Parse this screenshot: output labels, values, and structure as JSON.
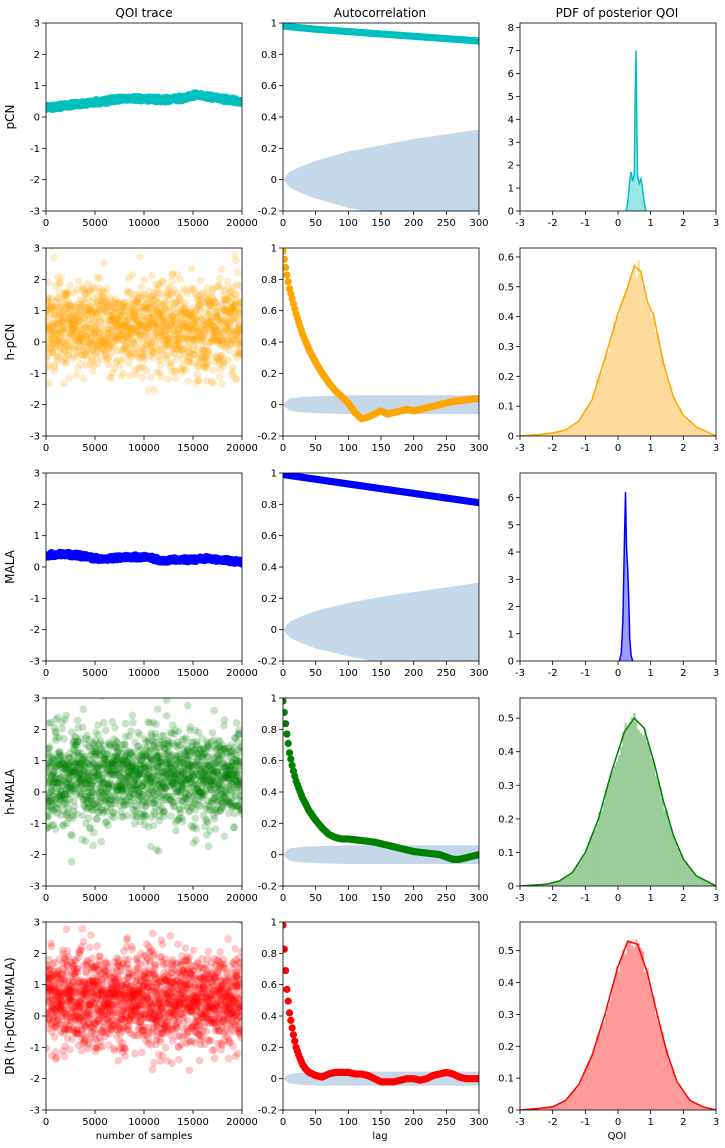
{
  "chart_data": {
    "type": "grid",
    "column_titles": [
      "QOI trace",
      "Autocorrelation",
      "PDF of posterior QOI"
    ],
    "x_labels": [
      "number of samples",
      "lag",
      "QOI"
    ],
    "trace_axis": {
      "xlim": [
        0,
        20000
      ],
      "ylim": [
        -3,
        3
      ],
      "xticks": [
        0,
        5000,
        10000,
        15000,
        20000
      ],
      "yticks": [
        -3,
        -2,
        -1,
        0,
        1,
        2,
        3
      ]
    },
    "acf_axis": {
      "xlim": [
        0,
        300
      ],
      "ylim": [
        -0.2,
        1.0
      ],
      "xticks": [
        0,
        50,
        100,
        150,
        200,
        250,
        300
      ],
      "yticks": [
        -0.2,
        0.0,
        0.2,
        0.4,
        0.6,
        0.8,
        1.0
      ]
    },
    "pdf_axis": {
      "xlim": [
        -3,
        3
      ],
      "xticks": [
        -3,
        -2,
        -1,
        0,
        1,
        2,
        3
      ]
    },
    "band_color": "#c5d8ea",
    "rows": [
      {
        "name": "pCN",
        "color": "#00bfbf",
        "trace": {
          "type": "scatter",
          "x": [
            0,
            2000,
            4000,
            6000,
            8000,
            10000,
            12000,
            14000,
            15500,
            17000,
            18500,
            20000
          ],
          "y": [
            0.3,
            0.35,
            0.45,
            0.5,
            0.6,
            0.58,
            0.55,
            0.6,
            0.72,
            0.62,
            0.55,
            0.5
          ],
          "spread": 0.06
        },
        "acf": {
          "type": "line",
          "x": [
            0,
            50,
            100,
            150,
            200,
            250,
            300
          ],
          "y": [
            0.98,
            0.96,
            0.945,
            0.93,
            0.915,
            0.9,
            0.885
          ]
        },
        "band": {
          "x": [
            0,
            10,
            25,
            50,
            100,
            150,
            200,
            250,
            300
          ],
          "half_width": [
            0,
            0.05,
            0.08,
            0.12,
            0.18,
            0.22,
            0.26,
            0.29,
            0.32
          ]
        },
        "pdf": {
          "type": "area",
          "ylim": [
            0,
            8.2
          ],
          "yticks": [
            0,
            1,
            2,
            3,
            4,
            5,
            6,
            7,
            8
          ],
          "x": [
            0.25,
            0.3,
            0.35,
            0.4,
            0.45,
            0.5,
            0.52,
            0.55,
            0.58,
            0.6,
            0.65,
            0.7,
            0.75,
            0.8,
            0.85
          ],
          "y": [
            0,
            0.4,
            1.2,
            1.7,
            1.3,
            1.6,
            4.5,
            7.0,
            3.5,
            1.5,
            1.2,
            1.4,
            1.0,
            0.4,
            0
          ]
        }
      },
      {
        "name": "h-pCN",
        "color": "#ffa500",
        "trace": {
          "type": "scatter",
          "mean": 0.5,
          "sd": 0.72,
          "n": 1400,
          "seed": 11
        },
        "acf": {
          "type": "line",
          "x": [
            0,
            5,
            10,
            20,
            30,
            40,
            50,
            60,
            70,
            80,
            90,
            100,
            110,
            120,
            130,
            140,
            150,
            160,
            170,
            180,
            190,
            200,
            220,
            240,
            260,
            280,
            300
          ],
          "y": [
            0.98,
            0.85,
            0.74,
            0.58,
            0.45,
            0.35,
            0.27,
            0.2,
            0.14,
            0.09,
            0.05,
            0.01,
            -0.05,
            -0.09,
            -0.08,
            -0.06,
            -0.04,
            -0.06,
            -0.05,
            -0.04,
            -0.03,
            -0.04,
            -0.02,
            0.0,
            0.02,
            0.03,
            0.04
          ]
        },
        "band": {
          "x": [
            0,
            10,
            30,
            60,
            100,
            200,
            300
          ],
          "half_width": [
            0,
            0.04,
            0.05,
            0.055,
            0.06,
            0.06,
            0.06
          ]
        },
        "pdf": {
          "type": "area",
          "ylim": [
            0,
            0.63
          ],
          "yticks": [
            0.0,
            0.1,
            0.2,
            0.3,
            0.4,
            0.5,
            0.6
          ],
          "x": [
            -3,
            -2.4,
            -2.0,
            -1.6,
            -1.2,
            -0.8,
            -0.4,
            0.0,
            0.3,
            0.5,
            0.7,
            0.9,
            1.1,
            1.4,
            1.7,
            2.0,
            2.4,
            2.8,
            3
          ],
          "y": [
            0,
            0.005,
            0.01,
            0.02,
            0.05,
            0.12,
            0.26,
            0.41,
            0.5,
            0.57,
            0.55,
            0.45,
            0.4,
            0.24,
            0.13,
            0.07,
            0.03,
            0.01,
            0
          ]
        }
      },
      {
        "name": "MALA",
        "color": "#0000ff",
        "trace": {
          "type": "scatter",
          "x": [
            0,
            1500,
            3000,
            4500,
            6000,
            7500,
            9000,
            10500,
            12000,
            13500,
            15000,
            16500,
            18000,
            20000
          ],
          "y": [
            0.38,
            0.42,
            0.38,
            0.3,
            0.25,
            0.3,
            0.32,
            0.3,
            0.2,
            0.25,
            0.22,
            0.28,
            0.22,
            0.16
          ],
          "spread": 0.05
        },
        "acf": {
          "type": "line",
          "x": [
            0,
            50,
            100,
            150,
            200,
            250,
            300
          ],
          "y": [
            0.99,
            0.96,
            0.93,
            0.9,
            0.87,
            0.84,
            0.81
          ]
        },
        "band": {
          "x": [
            0,
            10,
            25,
            50,
            100,
            150,
            200,
            250,
            300
          ],
          "half_width": [
            0,
            0.05,
            0.08,
            0.12,
            0.17,
            0.21,
            0.24,
            0.27,
            0.3
          ]
        },
        "pdf": {
          "type": "area",
          "ylim": [
            0,
            6.9
          ],
          "yticks": [
            0,
            1,
            2,
            3,
            4,
            5,
            6
          ],
          "x": [
            0.05,
            0.1,
            0.15,
            0.2,
            0.23,
            0.26,
            0.3,
            0.33,
            0.36,
            0.4,
            0.45
          ],
          "y": [
            0,
            0.3,
            1.5,
            4.5,
            6.2,
            4.2,
            3.3,
            2.2,
            0.8,
            0.2,
            0
          ]
        }
      },
      {
        "name": "h-MALA",
        "color": "#008000",
        "trace": {
          "type": "scatter",
          "mean": 0.5,
          "sd": 0.75,
          "n": 1600,
          "seed": 23
        },
        "acf": {
          "type": "line",
          "x": [
            0,
            5,
            10,
            15,
            20,
            30,
            40,
            50,
            60,
            70,
            80,
            90,
            100,
            120,
            140,
            160,
            180,
            200,
            220,
            240,
            260,
            270,
            280,
            300
          ],
          "y": [
            0.98,
            0.8,
            0.65,
            0.55,
            0.47,
            0.36,
            0.28,
            0.22,
            0.17,
            0.13,
            0.11,
            0.1,
            0.1,
            0.09,
            0.08,
            0.06,
            0.04,
            0.02,
            0.01,
            0.0,
            -0.03,
            -0.03,
            -0.02,
            0.0
          ]
        },
        "band": {
          "x": [
            0,
            10,
            30,
            60,
            100,
            200,
            300
          ],
          "half_width": [
            0,
            0.04,
            0.05,
            0.055,
            0.06,
            0.06,
            0.06
          ]
        },
        "pdf": {
          "type": "area",
          "ylim": [
            0,
            0.56
          ],
          "yticks": [
            0.0,
            0.1,
            0.2,
            0.3,
            0.4,
            0.5
          ],
          "x": [
            -3,
            -2.2,
            -1.8,
            -1.4,
            -1.0,
            -0.6,
            -0.2,
            0.2,
            0.5,
            0.8,
            1.1,
            1.4,
            1.7,
            2.0,
            2.4,
            2.8,
            3
          ],
          "y": [
            0,
            0.005,
            0.015,
            0.04,
            0.1,
            0.2,
            0.34,
            0.46,
            0.5,
            0.47,
            0.37,
            0.25,
            0.15,
            0.08,
            0.03,
            0.01,
            0
          ]
        }
      },
      {
        "name": "DR (h-pCN/h-MALA)",
        "color": "#ff0000",
        "trace": {
          "type": "scatter",
          "mean": 0.5,
          "sd": 0.75,
          "n": 1800,
          "seed": 37
        },
        "acf": {
          "type": "line",
          "x": [
            0,
            3,
            6,
            10,
            15,
            20,
            25,
            30,
            35,
            40,
            50,
            60,
            70,
            80,
            90,
            100,
            110,
            120,
            130,
            140,
            150,
            160,
            170,
            180,
            190,
            200,
            210,
            220,
            230,
            240,
            250,
            260,
            270,
            280,
            290,
            300
          ],
          "y": [
            0.98,
            0.75,
            0.57,
            0.42,
            0.3,
            0.2,
            0.14,
            0.09,
            0.06,
            0.04,
            0.02,
            0.01,
            0.03,
            0.04,
            0.04,
            0.04,
            0.03,
            0.03,
            0.02,
            0.0,
            -0.02,
            -0.02,
            -0.02,
            -0.01,
            0.0,
            0.0,
            -0.01,
            0.0,
            0.02,
            0.03,
            0.04,
            0.03,
            0.01,
            0.0,
            0.0,
            0.0
          ]
        },
        "band": {
          "x": [
            0,
            10,
            30,
            60,
            100,
            200,
            300
          ],
          "half_width": [
            0,
            0.03,
            0.04,
            0.045,
            0.045,
            0.045,
            0.045
          ]
        },
        "pdf": {
          "type": "area",
          "ylim": [
            0,
            0.59
          ],
          "yticks": [
            0.0,
            0.1,
            0.2,
            0.3,
            0.4,
            0.5
          ],
          "x": [
            -3,
            -2.4,
            -2.0,
            -1.6,
            -1.2,
            -0.8,
            -0.4,
            0.0,
            0.3,
            0.6,
            0.9,
            1.2,
            1.5,
            1.8,
            2.2,
            2.6,
            3
          ],
          "y": [
            0,
            0.005,
            0.01,
            0.03,
            0.08,
            0.17,
            0.3,
            0.45,
            0.53,
            0.52,
            0.43,
            0.3,
            0.18,
            0.09,
            0.03,
            0.01,
            0
          ]
        }
      }
    ]
  }
}
